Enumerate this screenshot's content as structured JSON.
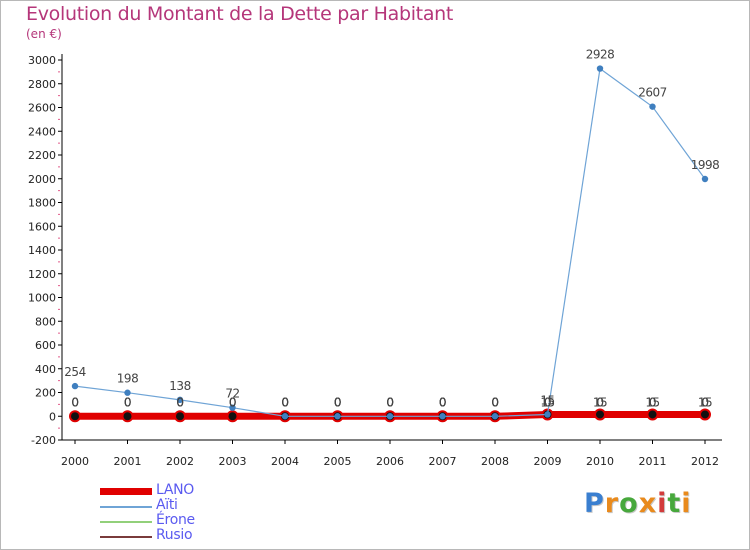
{
  "title": "Evolution du Montant de la Dette par Habitant",
  "subtitle": "(en €)",
  "logo": {
    "text": "Proxiti",
    "colors": [
      "#3a7fd0",
      "#e98a1c",
      "#47a83c",
      "#e98a1c",
      "#d23b3b",
      "#47a83c",
      "#e98a1c"
    ]
  },
  "colors": {
    "title": "#b5367a",
    "axis": "#000000",
    "grid_tick": "#e05a8a",
    "value_label": "#444444"
  },
  "chart_data": {
    "type": "line",
    "x": [
      "2000",
      "2001",
      "2002",
      "2003",
      "2004",
      "2005",
      "2006",
      "2007",
      "2008",
      "2009",
      "2010",
      "2011",
      "2012"
    ],
    "ylim": [
      -200,
      3000
    ],
    "yticks": [
      "-200",
      "0",
      "200",
      "400",
      "600",
      "800",
      "1000",
      "1200",
      "1400",
      "1600",
      "1800",
      "2000",
      "2200",
      "2400",
      "2600",
      "2800",
      "3000"
    ],
    "legend_position": "bottom-left",
    "series": [
      {
        "name": "LANO",
        "color": "#e00000",
        "values": [
          0,
          0,
          0,
          0,
          0,
          0,
          0,
          0,
          0,
          15,
          15,
          15,
          15
        ],
        "labels": [
          "0",
          "0",
          "0",
          "0",
          "0",
          "0",
          "0",
          "0",
          "0",
          "15",
          "15",
          "15",
          "15"
        ]
      },
      {
        "name": "Aïti",
        "color": "#6fa4d6",
        "values": [
          254,
          198,
          138,
          72,
          0,
          0,
          0,
          0,
          0,
          15,
          2928,
          2607,
          1998
        ],
        "labels": [
          "254",
          "198",
          "138",
          "72",
          "0",
          "0",
          "0",
          "0",
          "0",
          "15",
          "2928",
          "2607",
          "1998"
        ]
      },
      {
        "name": "Érone",
        "color": "#92d07a",
        "values": [
          0,
          0,
          0,
          0,
          0,
          0,
          0,
          0,
          0,
          0,
          0,
          0,
          0
        ],
        "labels": [
          "0",
          "0",
          "0",
          "0",
          "0",
          "0",
          "0",
          "0",
          "0",
          "0",
          "0",
          "0",
          "0"
        ]
      },
      {
        "name": "Rusio",
        "color": "#7a3b3b",
        "values": [
          0,
          0,
          0,
          0,
          0,
          0,
          0,
          0,
          0,
          0,
          0,
          0,
          0
        ],
        "labels": [
          "0",
          "0",
          "0",
          "0",
          "0",
          "0",
          "0",
          "0",
          "0",
          "0",
          "0",
          "0",
          "0"
        ]
      }
    ]
  }
}
